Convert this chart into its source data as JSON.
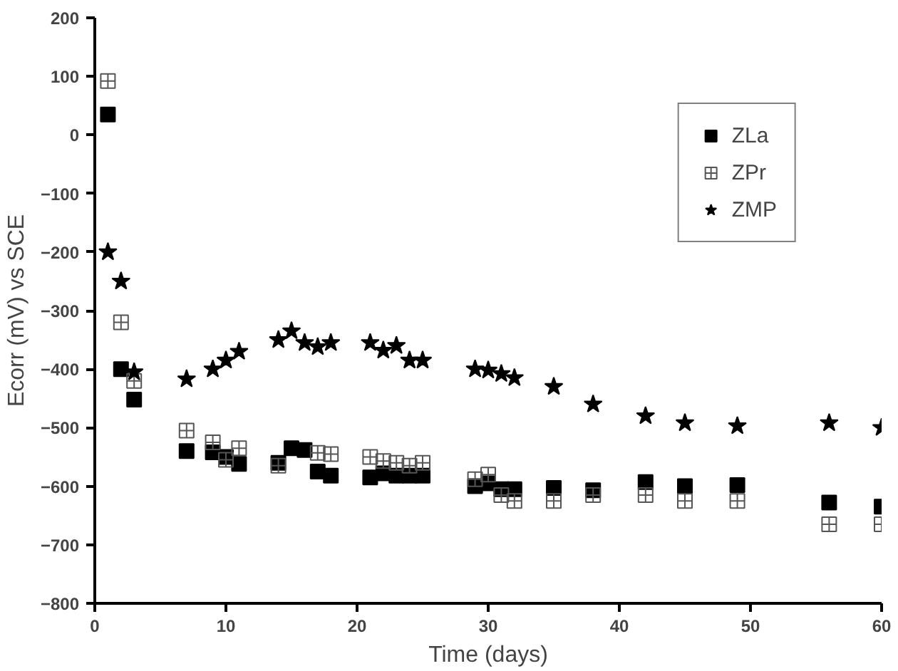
{
  "chart_data": {
    "type": "scatter",
    "xlabel": "Time (days)",
    "ylabel": "Ecorr (mV) vs SCE",
    "x": [
      1,
      2,
      3,
      7,
      9,
      10,
      11,
      14,
      15,
      16,
      17,
      18,
      21,
      22,
      23,
      24,
      25,
      29,
      30,
      31,
      32,
      35,
      38,
      42,
      45,
      49,
      56,
      60
    ],
    "series": [
      {
        "name": "ZLa",
        "color": "#000000",
        "marker": "square",
        "values": [
          35,
          -400,
          -452,
          -540,
          -542,
          -550,
          -562,
          -560,
          -535,
          -538,
          -575,
          -582,
          -585,
          -578,
          -582,
          -582,
          -582,
          -600,
          -595,
          -605,
          -605,
          -603,
          -607,
          -593,
          -600,
          -598,
          -628,
          -635
        ]
      },
      {
        "name": "ZPr",
        "color": "#555555",
        "marker": "cross",
        "values": [
          92,
          -320,
          -420,
          -505,
          -525,
          -555,
          -535,
          -565,
          null,
          null,
          -543,
          -545,
          -550,
          -557,
          -560,
          -565,
          -560,
          -588,
          -580,
          -615,
          -625,
          -625,
          -615,
          -615,
          -625,
          -625,
          -665,
          -665
        ]
      },
      {
        "name": "ZMP",
        "color": "#000000",
        "marker": "star",
        "values": [
          -200,
          -250,
          -405,
          -417,
          -400,
          -385,
          -370,
          -350,
          -335,
          -355,
          -362,
          -355,
          -355,
          -368,
          -360,
          -385,
          -385,
          -400,
          -402,
          -408,
          -415,
          -430,
          -460,
          -480,
          -492,
          -497,
          -492,
          -500
        ]
      }
    ],
    "xlim": [
      0,
      60
    ],
    "xticks": [
      0,
      10,
      20,
      30,
      40,
      50,
      60
    ],
    "ylim": [
      -800,
      200
    ],
    "yticks": [
      -800,
      -700,
      -600,
      -500,
      -400,
      -300,
      -200,
      -100,
      0,
      100,
      200
    ],
    "grid": false,
    "legend": "top right"
  }
}
